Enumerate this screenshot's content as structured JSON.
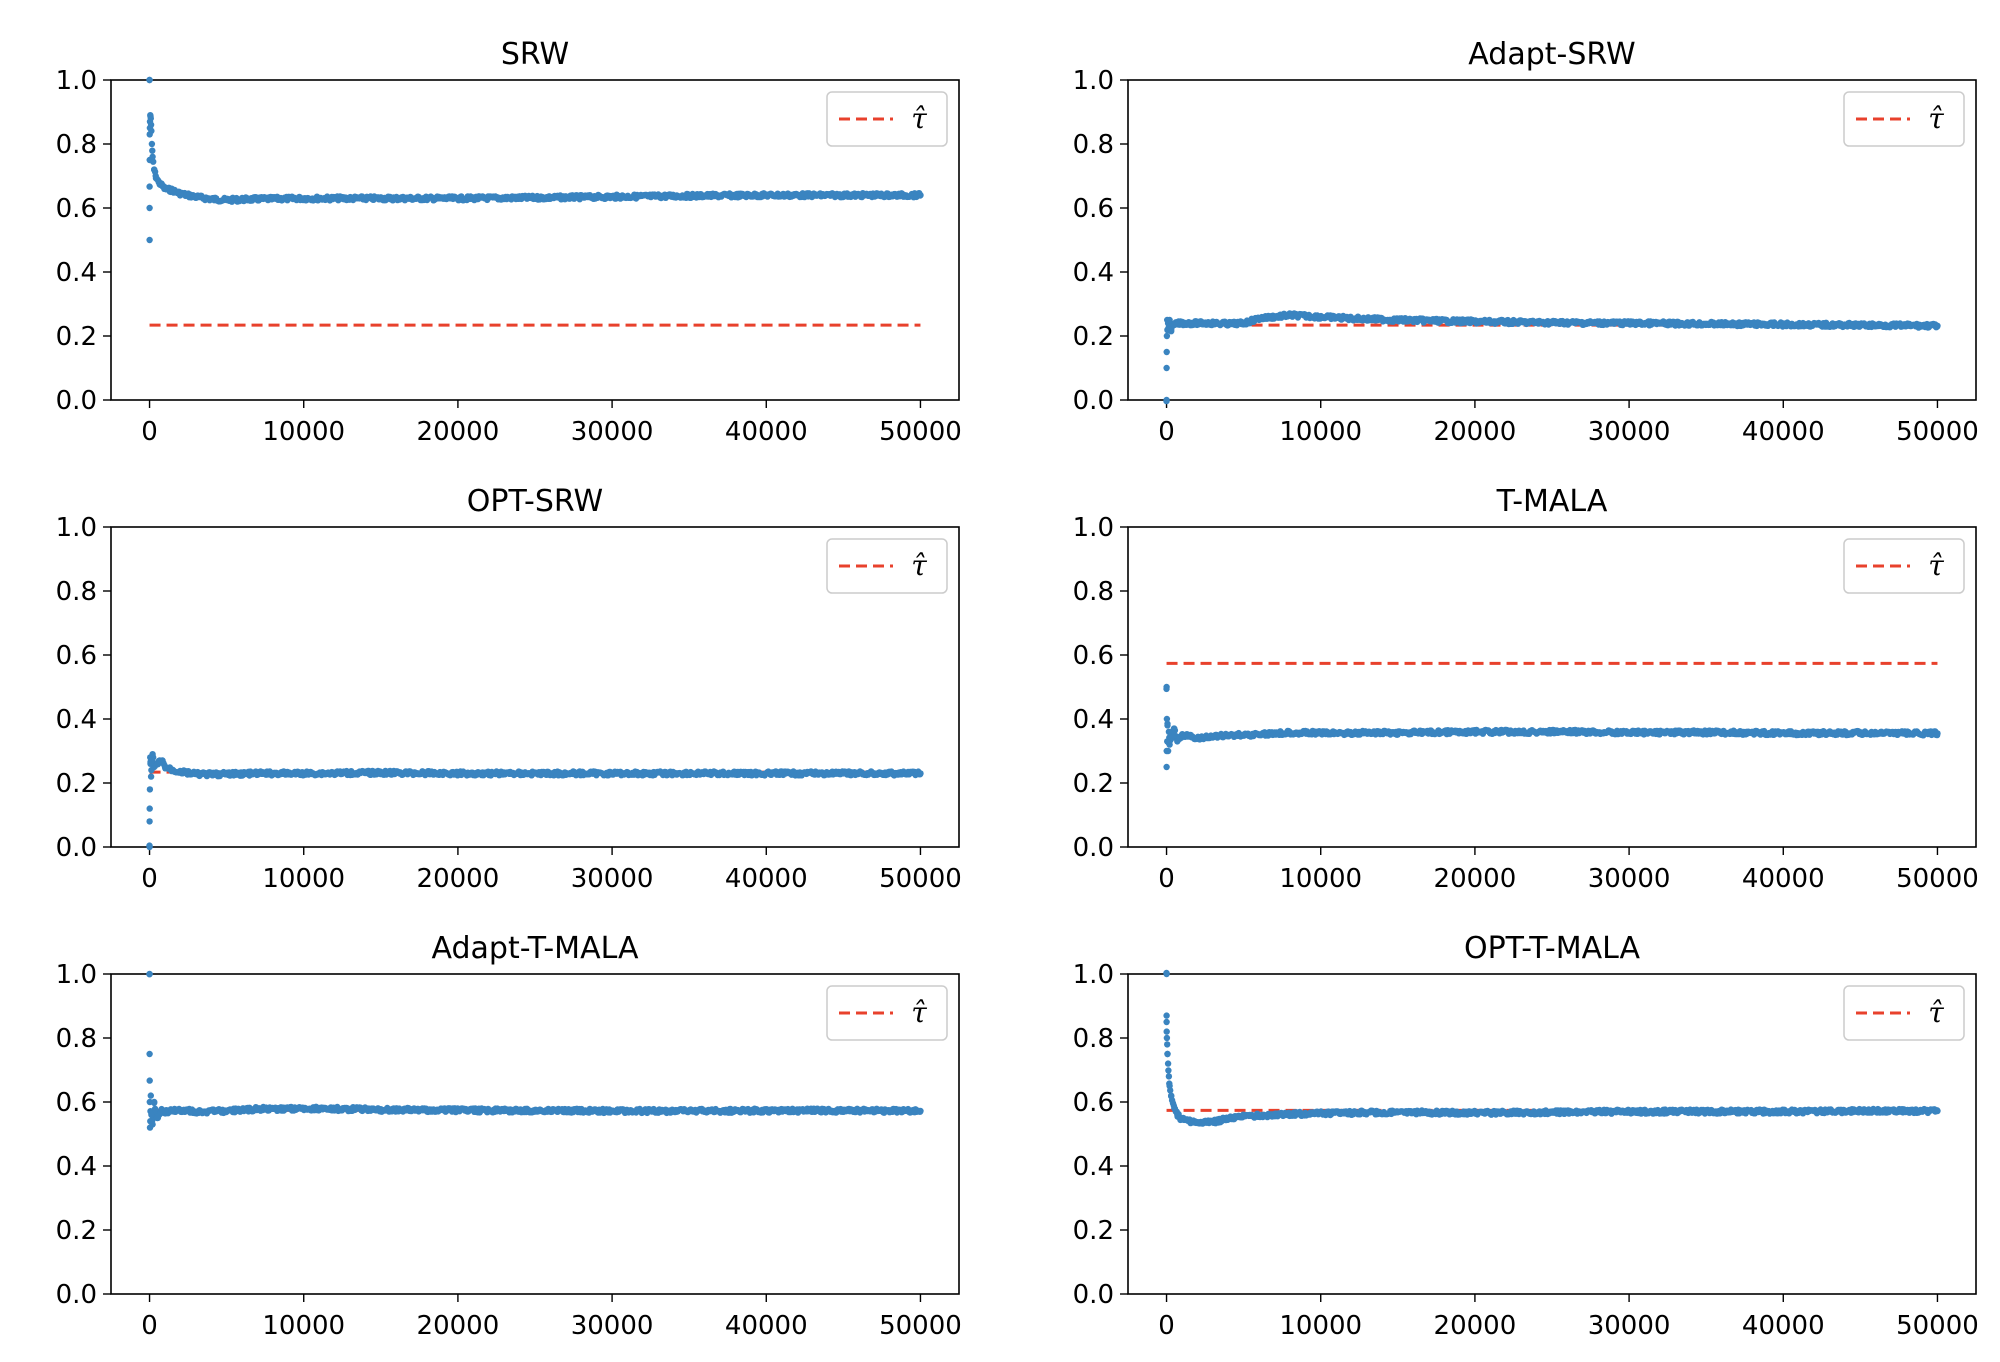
{
  "colors": {
    "series": "#3a84c0",
    "reference": "#e8412c",
    "axis": "#000000",
    "legend_border": "#cccccc"
  },
  "chart_data": [
    {
      "type": "scatter",
      "title": "SRW",
      "xlim": [
        -2500,
        52500
      ],
      "ylim": [
        0.0,
        1.0
      ],
      "xticks": [
        0,
        10000,
        20000,
        30000,
        40000,
        50000
      ],
      "xtick_labels": [
        "0",
        "10000",
        "20000",
        "30000",
        "40000",
        "50000"
      ],
      "yticks": [
        0.0,
        0.2,
        0.4,
        0.6,
        0.8,
        1.0
      ],
      "ytick_labels": [
        "0.0",
        "0.2",
        "0.4",
        "0.6",
        "0.8",
        "1.0"
      ],
      "legend": {
        "position": "top-right",
        "label": "τ̂"
      },
      "reference_line": {
        "y": 0.234,
        "x": [
          0,
          50000
        ]
      },
      "series": [
        {
          "x": [
            1,
            2,
            3,
            5,
            8,
            12,
            20,
            30,
            50,
            80,
            100,
            150,
            200,
            300,
            400,
            600,
            800,
            1000,
            1500,
            2000,
            3000,
            4000,
            5000,
            7000,
            10000,
            15000,
            20000,
            25000,
            30000,
            35000,
            40000,
            45000,
            50000
          ],
          "y": [
            1.0,
            0.5,
            0.667,
            0.6,
            0.75,
            0.83,
            0.85,
            0.87,
            0.89,
            0.88,
            0.86,
            0.8,
            0.76,
            0.72,
            0.7,
            0.68,
            0.67,
            0.66,
            0.655,
            0.645,
            0.635,
            0.628,
            0.625,
            0.628,
            0.63,
            0.63,
            0.63,
            0.632,
            0.635,
            0.638,
            0.64,
            0.64,
            0.64
          ]
        }
      ]
    },
    {
      "type": "scatter",
      "title": "Adapt-SRW",
      "xlim": [
        -2500,
        52500
      ],
      "ylim": [
        0.0,
        1.0
      ],
      "xticks": [
        0,
        10000,
        20000,
        30000,
        40000,
        50000
      ],
      "xtick_labels": [
        "0",
        "10000",
        "20000",
        "30000",
        "40000",
        "50000"
      ],
      "yticks": [
        0.0,
        0.2,
        0.4,
        0.6,
        0.8,
        1.0
      ],
      "ytick_labels": [
        "0.0",
        "0.2",
        "0.4",
        "0.6",
        "0.8",
        "1.0"
      ],
      "legend": {
        "position": "top-right",
        "label": "τ̂"
      },
      "reference_line": {
        "y": 0.234,
        "x": [
          0,
          50000
        ]
      },
      "series": [
        {
          "x": [
            1,
            5,
            10,
            20,
            40,
            60,
            100,
            150,
            200,
            300,
            500,
            800,
            1000,
            2000,
            3000,
            4000,
            5000,
            6000,
            8000,
            10000,
            12000,
            15000,
            20000,
            25000,
            30000,
            35000,
            40000,
            45000,
            50000
          ],
          "y": [
            0.0,
            0.1,
            0.15,
            0.2,
            0.25,
            0.22,
            0.24,
            0.23,
            0.25,
            0.22,
            0.235,
            0.24,
            0.24,
            0.24,
            0.24,
            0.238,
            0.24,
            0.255,
            0.265,
            0.26,
            0.255,
            0.25,
            0.245,
            0.242,
            0.24,
            0.238,
            0.236,
            0.234,
            0.232
          ]
        }
      ]
    },
    {
      "type": "scatter",
      "title": "OPT-SRW",
      "xlim": [
        -2500,
        52500
      ],
      "ylim": [
        0.0,
        1.0
      ],
      "xticks": [
        0,
        10000,
        20000,
        30000,
        40000,
        50000
      ],
      "xtick_labels": [
        "0",
        "10000",
        "20000",
        "30000",
        "40000",
        "50000"
      ],
      "yticks": [
        0.0,
        0.2,
        0.4,
        0.6,
        0.8,
        1.0
      ],
      "ytick_labels": [
        "0.0",
        "0.2",
        "0.4",
        "0.6",
        "0.8",
        "1.0"
      ],
      "legend": {
        "position": "top-right",
        "label": "τ̂"
      },
      "reference_line": {
        "y": 0.234,
        "x": [
          0,
          50000
        ]
      },
      "series": [
        {
          "x": [
            1,
            5,
            10,
            20,
            40,
            60,
            100,
            150,
            200,
            300,
            500,
            800,
            1000,
            1500,
            2000,
            3000,
            4000,
            5000,
            7000,
            10000,
            15000,
            20000,
            25000,
            30000,
            35000,
            40000,
            45000,
            50000
          ],
          "y": [
            0.0,
            0.08,
            0.12,
            0.18,
            0.28,
            0.26,
            0.22,
            0.27,
            0.29,
            0.25,
            0.26,
            0.27,
            0.25,
            0.24,
            0.235,
            0.228,
            0.227,
            0.228,
            0.23,
            0.23,
            0.232,
            0.23,
            0.23,
            0.23,
            0.23,
            0.23,
            0.23,
            0.23
          ]
        }
      ]
    },
    {
      "type": "scatter",
      "title": "T-MALA",
      "xlim": [
        -2500,
        52500
      ],
      "ylim": [
        0.0,
        1.0
      ],
      "xticks": [
        0,
        10000,
        20000,
        30000,
        40000,
        50000
      ],
      "xtick_labels": [
        "0",
        "10000",
        "20000",
        "30000",
        "40000",
        "50000"
      ],
      "yticks": [
        0.0,
        0.2,
        0.4,
        0.6,
        0.8,
        1.0
      ],
      "ytick_labels": [
        "0.0",
        "0.2",
        "0.4",
        "0.6",
        "0.8",
        "1.0"
      ],
      "legend": {
        "position": "top-right",
        "label": "τ̂"
      },
      "reference_line": {
        "y": 0.574,
        "x": [
          0,
          50000
        ]
      },
      "series": [
        {
          "x": [
            2,
            5,
            10,
            20,
            40,
            60,
            100,
            150,
            200,
            300,
            500,
            700,
            1000,
            1500,
            2000,
            3000,
            4000,
            5000,
            6000,
            8000,
            10000,
            15000,
            20000,
            25000,
            30000,
            35000,
            40000,
            45000,
            50000
          ],
          "y": [
            0.5,
            0.25,
            0.3,
            0.4,
            0.33,
            0.38,
            0.3,
            0.36,
            0.32,
            0.34,
            0.37,
            0.33,
            0.35,
            0.345,
            0.34,
            0.345,
            0.35,
            0.35,
            0.352,
            0.358,
            0.356,
            0.357,
            0.36,
            0.36,
            0.358,
            0.358,
            0.356,
            0.356,
            0.355
          ]
        }
      ]
    },
    {
      "type": "scatter",
      "title": "Adapt-T-MALA",
      "xlim": [
        -2500,
        52500
      ],
      "ylim": [
        0.0,
        1.0
      ],
      "xticks": [
        0,
        10000,
        20000,
        30000,
        40000,
        50000
      ],
      "xtick_labels": [
        "0",
        "10000",
        "20000",
        "30000",
        "40000",
        "50000"
      ],
      "yticks": [
        0.0,
        0.2,
        0.4,
        0.6,
        0.8,
        1.0
      ],
      "ytick_labels": [
        "0.0",
        "0.2",
        "0.4",
        "0.6",
        "0.8",
        "1.0"
      ],
      "legend": {
        "position": "top-right",
        "label": "τ̂"
      },
      "reference_line": {
        "y": 0.574,
        "x": [
          0,
          50000
        ]
      },
      "series": [
        {
          "x": [
            1,
            4,
            8,
            15,
            30,
            50,
            80,
            120,
            200,
            300,
            500,
            800,
            1000,
            2000,
            3000,
            5000,
            7000,
            10000,
            15000,
            20000,
            25000,
            30000,
            35000,
            40000,
            45000,
            50000
          ],
          "y": [
            1.0,
            0.75,
            0.667,
            0.6,
            0.52,
            0.54,
            0.62,
            0.56,
            0.53,
            0.6,
            0.55,
            0.575,
            0.57,
            0.575,
            0.57,
            0.572,
            0.578,
            0.58,
            0.576,
            0.574,
            0.573,
            0.572,
            0.572,
            0.573,
            0.573,
            0.572
          ]
        }
      ]
    },
    {
      "type": "scatter",
      "title": "OPT-T-MALA",
      "xlim": [
        -2500,
        52500
      ],
      "ylim": [
        0.0,
        1.0
      ],
      "xticks": [
        0,
        10000,
        20000,
        30000,
        40000,
        50000
      ],
      "xtick_labels": [
        "0",
        "10000",
        "20000",
        "30000",
        "40000",
        "50000"
      ],
      "yticks": [
        0.0,
        0.2,
        0.4,
        0.6,
        0.8,
        1.0
      ],
      "ytick_labels": [
        "0.0",
        "0.2",
        "0.4",
        "0.6",
        "0.8",
        "1.0"
      ],
      "legend": {
        "position": "top-right",
        "label": "τ̂"
      },
      "reference_line": {
        "y": 0.574,
        "x": [
          0,
          50000
        ]
      },
      "series": [
        {
          "x": [
            1,
            3,
            6,
            10,
            20,
            40,
            60,
            100,
            150,
            200,
            300,
            500,
            700,
            1000,
            1500,
            2000,
            3000,
            4000,
            5000,
            7000,
            10000,
            15000,
            20000,
            25000,
            30000,
            35000,
            40000,
            45000,
            50000
          ],
          "y": [
            1.0,
            0.87,
            0.85,
            0.82,
            0.8,
            0.78,
            0.75,
            0.72,
            0.68,
            0.65,
            0.62,
            0.58,
            0.56,
            0.545,
            0.54,
            0.535,
            0.538,
            0.548,
            0.555,
            0.56,
            0.565,
            0.568,
            0.566,
            0.568,
            0.57,
            0.57,
            0.57,
            0.572,
            0.572
          ]
        }
      ]
    }
  ]
}
